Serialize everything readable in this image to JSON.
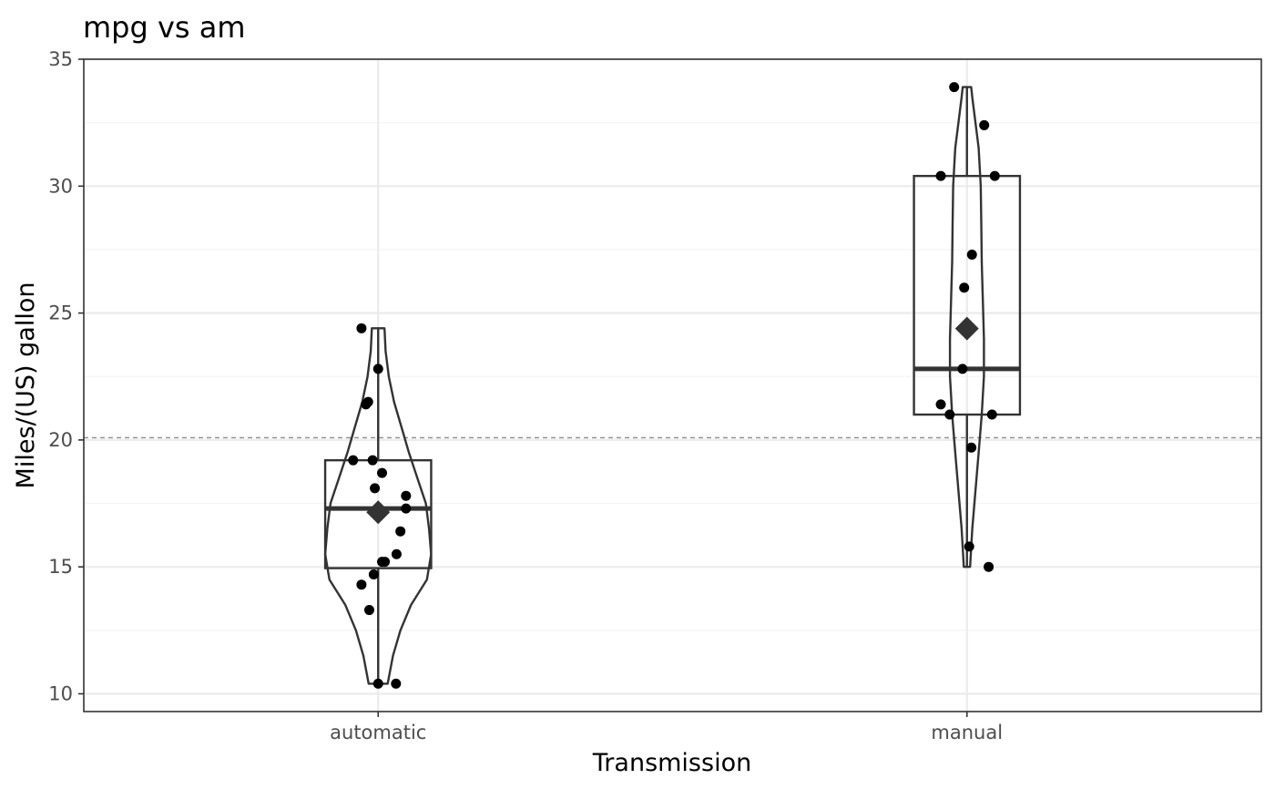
{
  "chart_data": {
    "type": "violin-box-jitter",
    "title": "mpg vs am",
    "xlabel": "Transmission",
    "ylabel": "Miles/(US) gallon",
    "categories": [
      "automatic",
      "manual"
    ],
    "ylim": [
      9.3,
      35
    ],
    "yticks": [
      10,
      15,
      20,
      25,
      30,
      35
    ],
    "reference_line": 20.09,
    "grid": true,
    "groups": [
      {
        "name": "automatic",
        "box": {
          "min": 10.4,
          "q1": 14.95,
          "median": 17.3,
          "q3": 19.2,
          "max": 24.4
        },
        "mean": 17.15,
        "density": [
          [
            10.4,
            0.18
          ],
          [
            11.5,
            0.28
          ],
          [
            12.5,
            0.42
          ],
          [
            13.5,
            0.62
          ],
          [
            14.5,
            0.92
          ],
          [
            15.5,
            1.0
          ],
          [
            16.5,
            0.96
          ],
          [
            17.5,
            0.9
          ],
          [
            18.5,
            0.74
          ],
          [
            19.5,
            0.58
          ],
          [
            20.5,
            0.44
          ],
          [
            21.5,
            0.3
          ],
          [
            22.5,
            0.2
          ],
          [
            23.5,
            0.14
          ],
          [
            24.4,
            0.12
          ]
        ],
        "points": [
          {
            "y": 24.4,
            "jx": -0.3
          },
          {
            "y": 22.8,
            "jx": 0.0
          },
          {
            "y": 21.5,
            "jx": -0.18
          },
          {
            "y": 21.4,
            "jx": -0.22
          },
          {
            "y": 19.2,
            "jx": -0.45
          },
          {
            "y": 19.2,
            "jx": -0.1
          },
          {
            "y": 18.7,
            "jx": 0.07
          },
          {
            "y": 18.1,
            "jx": -0.06
          },
          {
            "y": 17.8,
            "jx": 0.5
          },
          {
            "y": 17.3,
            "jx": 0.5
          },
          {
            "y": 16.4,
            "jx": 0.4
          },
          {
            "y": 15.5,
            "jx": 0.33
          },
          {
            "y": 15.2,
            "jx": 0.07
          },
          {
            "y": 15.2,
            "jx": 0.12
          },
          {
            "y": 14.7,
            "jx": -0.08
          },
          {
            "y": 14.3,
            "jx": -0.3
          },
          {
            "y": 13.3,
            "jx": -0.16
          },
          {
            "y": 10.4,
            "jx": 0.0
          },
          {
            "y": 10.4,
            "jx": 0.32
          }
        ]
      },
      {
        "name": "manual",
        "box": {
          "min": 15.0,
          "q1": 21.0,
          "median": 22.8,
          "q3": 30.4,
          "max": 33.9
        },
        "mean": 24.39,
        "density": [
          [
            15.0,
            0.06
          ],
          [
            16.5,
            0.1
          ],
          [
            18.0,
            0.16
          ],
          [
            19.5,
            0.22
          ],
          [
            21.0,
            0.28
          ],
          [
            22.5,
            0.32
          ],
          [
            24.0,
            0.32
          ],
          [
            25.5,
            0.3
          ],
          [
            27.0,
            0.28
          ],
          [
            28.5,
            0.27
          ],
          [
            30.0,
            0.26
          ],
          [
            31.5,
            0.22
          ],
          [
            32.5,
            0.16
          ],
          [
            33.5,
            0.1
          ],
          [
            33.9,
            0.08
          ]
        ],
        "points": [
          {
            "y": 33.9,
            "jx": -0.23
          },
          {
            "y": 32.4,
            "jx": 0.31
          },
          {
            "y": 30.4,
            "jx": -0.47
          },
          {
            "y": 30.4,
            "jx": 0.5
          },
          {
            "y": 27.3,
            "jx": 0.09
          },
          {
            "y": 26.0,
            "jx": -0.05
          },
          {
            "y": 22.8,
            "jx": -0.08
          },
          {
            "y": 21.4,
            "jx": -0.47
          },
          {
            "y": 21.0,
            "jx": -0.31
          },
          {
            "y": 21.0,
            "jx": 0.45
          },
          {
            "y": 19.7,
            "jx": 0.08
          },
          {
            "y": 15.8,
            "jx": 0.04
          },
          {
            "y": 15.0,
            "jx": 0.39
          }
        ]
      }
    ],
    "colors": {
      "panel_border": "#333333",
      "grid_major": "#ebebeb",
      "grid_minor": "#f4f4f4",
      "outline": "#333333",
      "point": "#000000",
      "reference_line": "#8c8c8c"
    }
  }
}
